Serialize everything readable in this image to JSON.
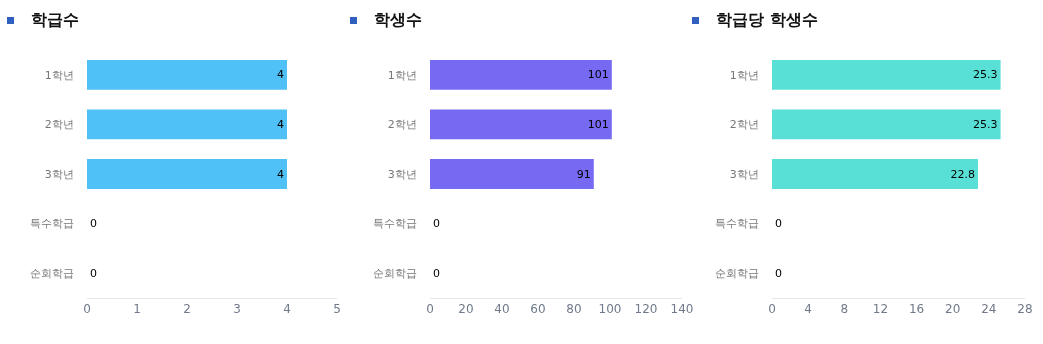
{
  "chart_data": [
    {
      "type": "bar",
      "orientation": "horizontal",
      "title": "학급수",
      "categories": [
        "1학년",
        "2학년",
        "3학년",
        "특수학급",
        "순회학급"
      ],
      "values": [
        4,
        4,
        4,
        0,
        0
      ],
      "color": "#4fc1f7",
      "xlim": [
        0,
        5
      ],
      "xticks": [
        0,
        1,
        2,
        3,
        4,
        5
      ],
      "data_labels": true,
      "legend": false
    },
    {
      "type": "bar",
      "orientation": "horizontal",
      "title": "학생수",
      "categories": [
        "1학년",
        "2학년",
        "3학년",
        "특수학급",
        "순회학급"
      ],
      "values": [
        101,
        101,
        91,
        0,
        0
      ],
      "color": "#7669f2",
      "xlim": [
        0,
        140
      ],
      "xticks": [
        0,
        20,
        40,
        60,
        80,
        100,
        120,
        140
      ],
      "data_labels": true,
      "legend": false
    },
    {
      "type": "bar",
      "orientation": "horizontal",
      "title": "학급당 학생수",
      "categories": [
        "1학년",
        "2학년",
        "3학년",
        "특수학급",
        "순회학급"
      ],
      "values": [
        25.3,
        25.3,
        22.8,
        0,
        0
      ],
      "color": "#58e0d6",
      "xlim": [
        0,
        28
      ],
      "xticks": [
        0,
        4,
        8,
        12,
        16,
        20,
        24,
        28
      ],
      "data_labels": true,
      "legend": false
    }
  ]
}
